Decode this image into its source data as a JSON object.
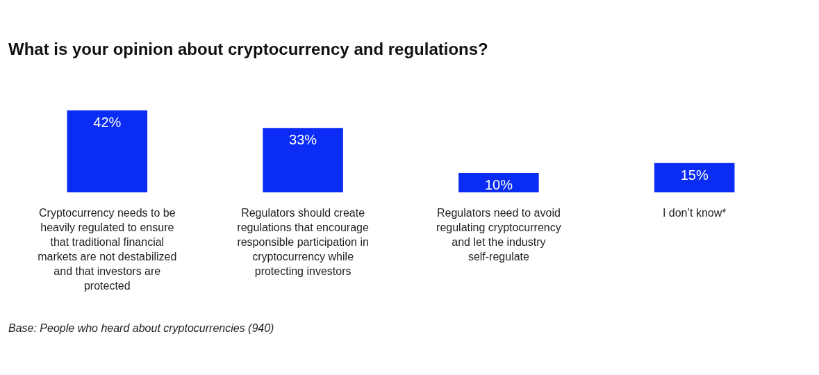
{
  "chart_data": {
    "type": "bar",
    "title": "What is your opinion about cryptocurrency and regulations?",
    "categories": [
      "Cryptocurrency needs to be heavily regulated to ensure that traditional financial markets are not destabilized and that investors are protected",
      "Regulators should create regulations that encourage responsible participation in cryptocurrency while protecting investors",
      "Regulators need to avoid regulating cryptocurrency and let the industry self-regulate",
      "I don’t know*"
    ],
    "values": [
      42,
      33,
      10,
      15
    ],
    "value_labels": [
      "42%",
      "33%",
      "10%",
      "15%"
    ],
    "color": "#0a2cf5",
    "annotations": [
      "Base: People who heard about cryptocurrencies  (940)"
    ]
  }
}
